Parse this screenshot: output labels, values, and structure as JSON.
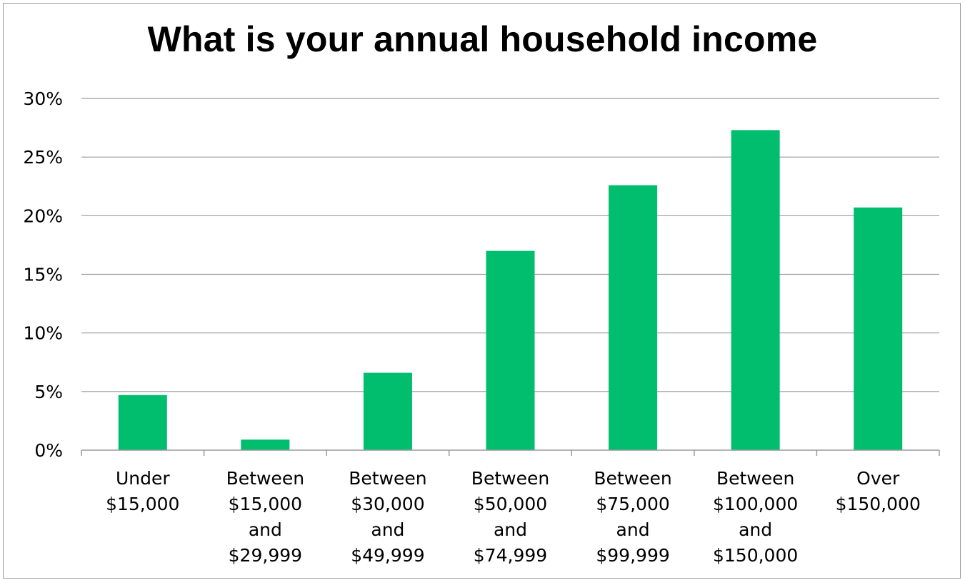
{
  "chart_data": {
    "type": "bar",
    "title": "What is your annual household income",
    "xlabel": "",
    "ylabel": "",
    "ylim": [
      0,
      30
    ],
    "yticks": [
      "0%",
      "5%",
      "10%",
      "15%",
      "20%",
      "25%",
      "30%"
    ],
    "grid": true,
    "legend": "none",
    "bar_color": "#00be6e",
    "categories": [
      [
        "Under",
        "$15,000"
      ],
      [
        "Between",
        "$15,000",
        "and",
        "$29,999"
      ],
      [
        "Between",
        "$30,000",
        "and",
        "$49,999"
      ],
      [
        "Between",
        "$50,000",
        "and",
        "$74,999"
      ],
      [
        "Between",
        "$75,000",
        "and",
        "$99,999"
      ],
      [
        "Between",
        "$100,000",
        "and",
        "$150,000"
      ],
      [
        "Over",
        "$150,000"
      ]
    ],
    "values": [
      4.7,
      0.9,
      6.6,
      17.0,
      22.6,
      27.3,
      20.7
    ]
  }
}
